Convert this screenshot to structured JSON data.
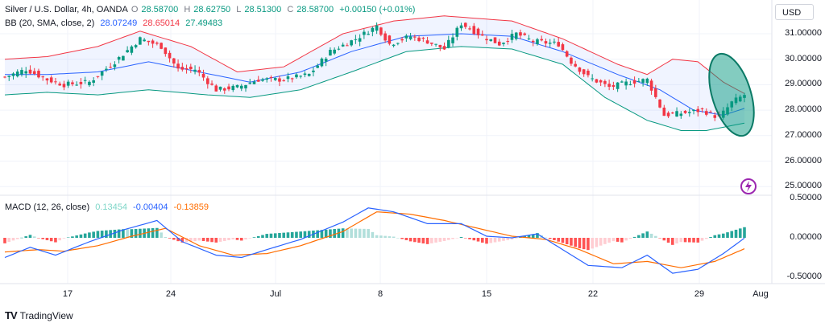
{
  "header": {
    "symbol": "Silver / U.S. Dollar, 4h, OANDA",
    "o_label": "O",
    "o": "28.58700",
    "h_label": "H",
    "h": "28.62750",
    "l_label": "L",
    "l": "28.51300",
    "c_label": "C",
    "c": "28.58700",
    "change": "+0.00150 (+0.01%)",
    "bb_label": "BB (20, SMA, close, 2)",
    "bb_mid": "28.07249",
    "bb_up": "28.65014",
    "bb_low": "27.49483",
    "macd_label": "MACD (12, 26, close)",
    "macd_hist": "0.13454",
    "macd_line": "-0.00404",
    "macd_signal": "-0.13859"
  },
  "currency": "USD",
  "footer": {
    "brand": "TradingView"
  },
  "colors": {
    "up": "#089981",
    "down": "#f23645",
    "mid": "#2962ff",
    "upper": "#f23645",
    "lower": "#089981",
    "macd": "#2962ff",
    "signal": "#ff6d00",
    "ellipse": "#089981"
  },
  "chart_data": [
    {
      "type": "candlestick",
      "ylim": [
        24.8,
        32.0
      ],
      "y_ticks": [
        "25.00000",
        "26.00000",
        "27.00000",
        "28.00000",
        "29.00000",
        "30.00000",
        "31.00000"
      ],
      "x_ticks": [
        "17",
        "24",
        "Jul",
        "8",
        "15",
        "22",
        "29",
        "Aug"
      ],
      "close_path": [
        [
          0,
          29.3
        ],
        [
          5,
          29.6
        ],
        [
          10,
          29.2
        ],
        [
          14,
          29.0
        ],
        [
          20,
          29.1
        ],
        [
          26,
          29.9
        ],
        [
          32,
          30.8
        ],
        [
          37,
          30.5
        ],
        [
          41,
          29.6
        ],
        [
          45,
          29.6
        ],
        [
          50,
          28.8
        ],
        [
          55,
          28.9
        ],
        [
          60,
          29.2
        ],
        [
          66,
          29.2
        ],
        [
          72,
          29.4
        ],
        [
          77,
          30.3
        ],
        [
          83,
          30.8
        ],
        [
          88,
          31.3
        ],
        [
          91,
          30.6
        ],
        [
          96,
          30.9
        ],
        [
          100,
          30.7
        ],
        [
          104,
          30.4
        ],
        [
          108,
          31.4
        ],
        [
          113,
          30.9
        ],
        [
          117,
          30.6
        ],
        [
          121,
          31.0
        ],
        [
          125,
          30.7
        ],
        [
          131,
          30.6
        ],
        [
          134,
          29.9
        ],
        [
          138,
          29.3
        ],
        [
          143,
          28.9
        ],
        [
          148,
          29.1
        ],
        [
          152,
          29.2
        ],
        [
          156,
          27.8
        ],
        [
          161,
          27.9
        ],
        [
          165,
          28.0
        ],
        [
          169,
          27.7
        ],
        [
          172,
          28.3
        ],
        [
          175,
          28.6
        ]
      ],
      "bb_upper": [
        [
          0,
          30.0
        ],
        [
          10,
          30.1
        ],
        [
          22,
          30.5
        ],
        [
          32,
          31.1
        ],
        [
          44,
          30.5
        ],
        [
          55,
          29.5
        ],
        [
          66,
          29.7
        ],
        [
          80,
          31.0
        ],
        [
          92,
          31.5
        ],
        [
          104,
          31.7
        ],
        [
          120,
          31.5
        ],
        [
          132,
          30.8
        ],
        [
          145,
          29.8
        ],
        [
          152,
          29.4
        ],
        [
          158,
          30.0
        ],
        [
          164,
          29.9
        ],
        [
          170,
          29.1
        ],
        [
          175,
          28.65
        ]
      ],
      "bb_middle": [
        [
          0,
          29.4
        ],
        [
          10,
          29.4
        ],
        [
          22,
          29.5
        ],
        [
          34,
          29.9
        ],
        [
          46,
          29.5
        ],
        [
          58,
          29.1
        ],
        [
          70,
          29.5
        ],
        [
          82,
          30.3
        ],
        [
          95,
          30.9
        ],
        [
          108,
          31.0
        ],
        [
          120,
          30.9
        ],
        [
          132,
          30.3
        ],
        [
          145,
          29.4
        ],
        [
          155,
          28.8
        ],
        [
          163,
          28.0
        ],
        [
          170,
          27.8
        ],
        [
          175,
          28.07
        ]
      ],
      "bb_lower": [
        [
          0,
          28.6
        ],
        [
          10,
          28.7
        ],
        [
          22,
          28.6
        ],
        [
          34,
          28.8
        ],
        [
          48,
          28.6
        ],
        [
          58,
          28.5
        ],
        [
          70,
          28.8
        ],
        [
          82,
          29.5
        ],
        [
          95,
          30.3
        ],
        [
          108,
          30.5
        ],
        [
          120,
          30.4
        ],
        [
          132,
          29.8
        ],
        [
          142,
          28.5
        ],
        [
          152,
          27.6
        ],
        [
          160,
          27.2
        ],
        [
          166,
          27.2
        ],
        [
          175,
          27.49
        ]
      ],
      "annotation": "ellipse-highlight"
    },
    {
      "type": "macd",
      "ylim": [
        -0.6,
        0.6
      ],
      "y_ticks": [
        "0.50000",
        "0.00000",
        "-0.50000"
      ],
      "macd": [
        [
          0,
          -0.25
        ],
        [
          6,
          -0.12
        ],
        [
          12,
          -0.22
        ],
        [
          20,
          -0.05
        ],
        [
          28,
          0.1
        ],
        [
          36,
          0.22
        ],
        [
          42,
          -0.05
        ],
        [
          50,
          -0.22
        ],
        [
          56,
          -0.25
        ],
        [
          62,
          -0.15
        ],
        [
          70,
          -0.02
        ],
        [
          80,
          0.2
        ],
        [
          86,
          0.38
        ],
        [
          92,
          0.33
        ],
        [
          100,
          0.18
        ],
        [
          108,
          0.18
        ],
        [
          114,
          0.02
        ],
        [
          120,
          0.0
        ],
        [
          126,
          0.05
        ],
        [
          132,
          -0.15
        ],
        [
          138,
          -0.35
        ],
        [
          146,
          -0.38
        ],
        [
          152,
          -0.22
        ],
        [
          158,
          -0.45
        ],
        [
          164,
          -0.4
        ],
        [
          170,
          -0.2
        ],
        [
          175,
          -0.004
        ]
      ],
      "signal": [
        [
          0,
          -0.18
        ],
        [
          8,
          -0.15
        ],
        [
          14,
          -0.17
        ],
        [
          22,
          -0.1
        ],
        [
          30,
          0.02
        ],
        [
          38,
          0.12
        ],
        [
          46,
          -0.1
        ],
        [
          54,
          -0.22
        ],
        [
          62,
          -0.2
        ],
        [
          70,
          -0.1
        ],
        [
          80,
          0.08
        ],
        [
          88,
          0.33
        ],
        [
          96,
          0.3
        ],
        [
          104,
          0.22
        ],
        [
          112,
          0.12
        ],
        [
          120,
          0.02
        ],
        [
          128,
          -0.02
        ],
        [
          136,
          -0.15
        ],
        [
          144,
          -0.33
        ],
        [
          152,
          -0.3
        ],
        [
          160,
          -0.38
        ],
        [
          168,
          -0.3
        ],
        [
          175,
          -0.139
        ]
      ]
    }
  ]
}
